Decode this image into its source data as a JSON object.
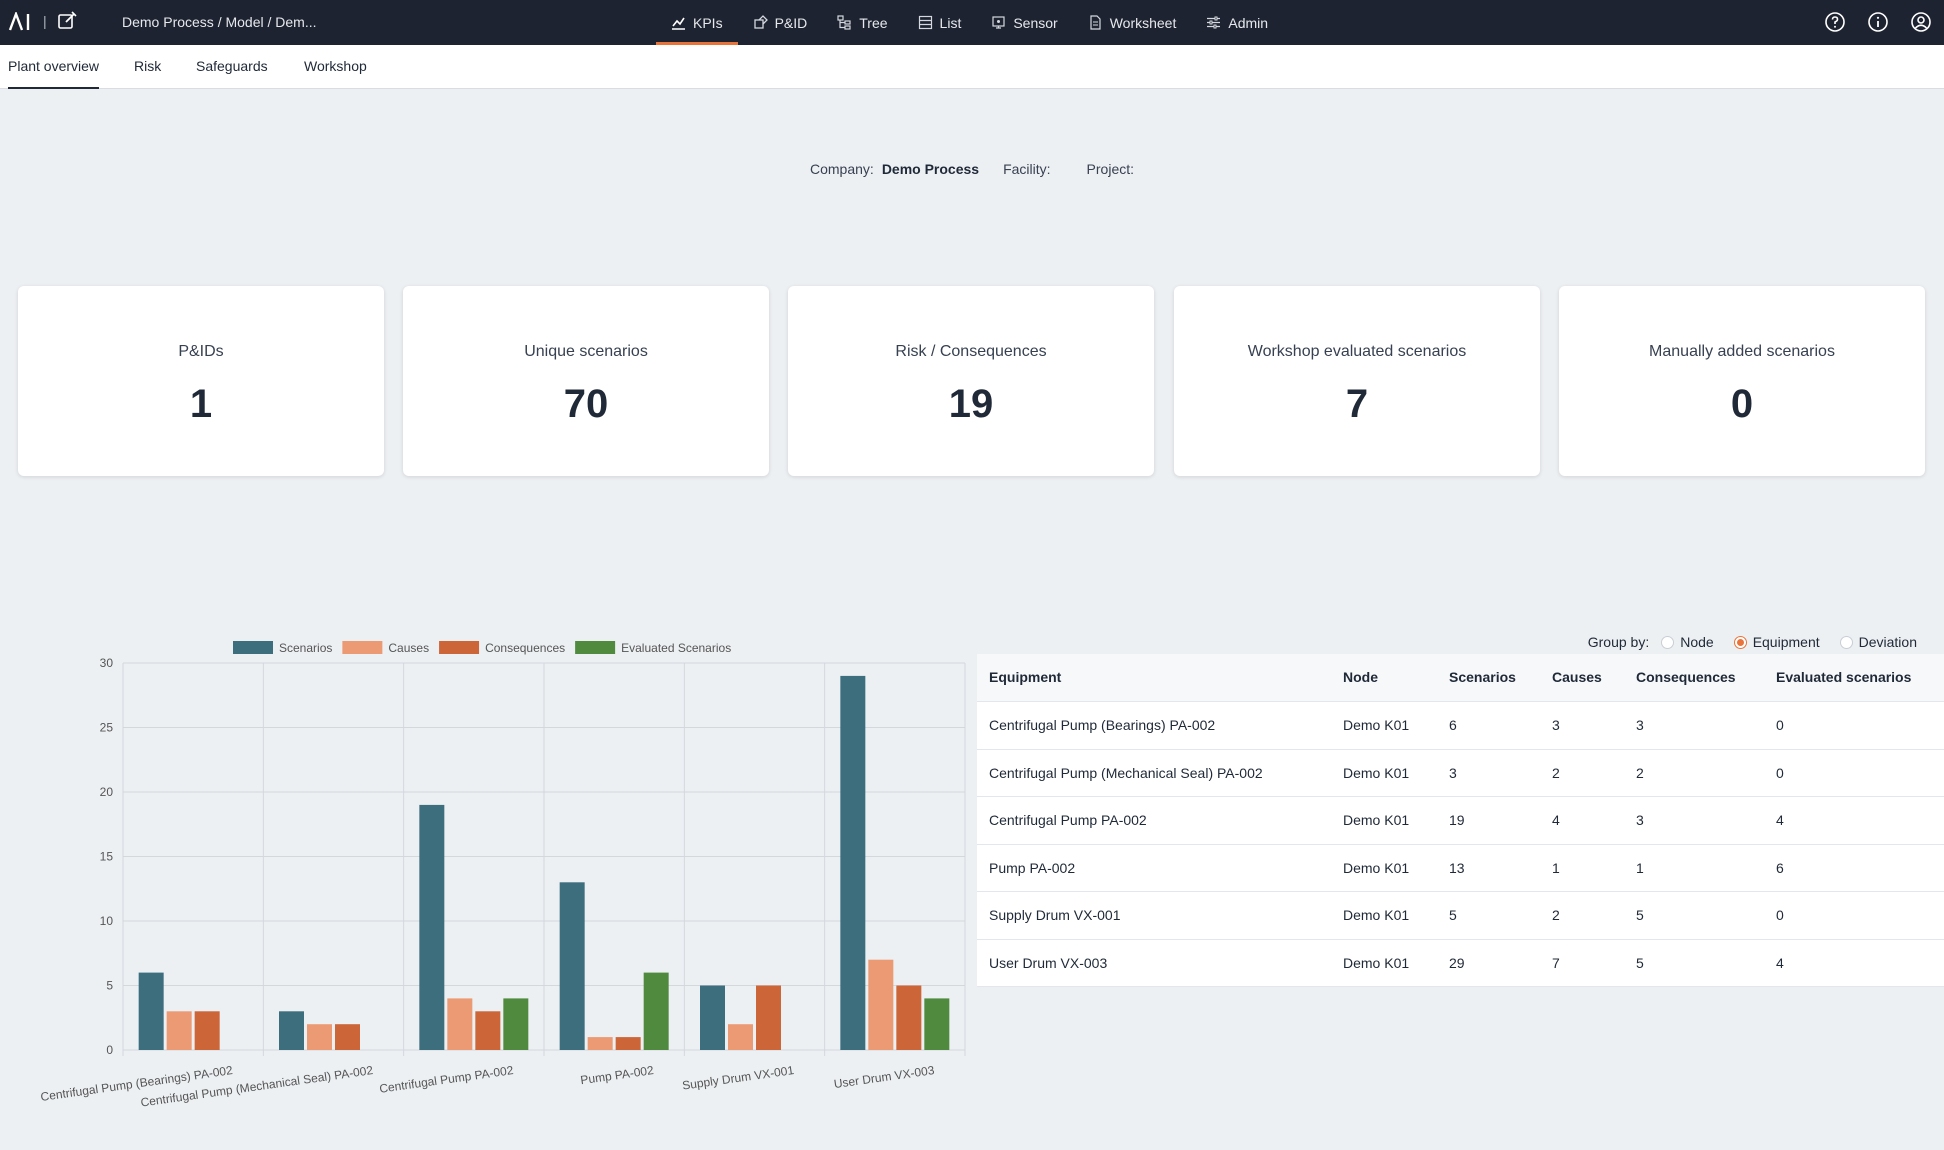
{
  "topbar": {
    "logo_text": "AI",
    "breadcrumb": "Demo Process / Model / Dem...",
    "nav": [
      {
        "label": "KPIs",
        "icon": "chart-line-icon",
        "active": true
      },
      {
        "label": "P&ID",
        "icon": "pid-icon",
        "active": false
      },
      {
        "label": "Tree",
        "icon": "tree-icon",
        "active": false
      },
      {
        "label": "List",
        "icon": "list-icon",
        "active": false
      },
      {
        "label": "Sensor",
        "icon": "sensor-icon",
        "active": false
      },
      {
        "label": "Worksheet",
        "icon": "worksheet-icon",
        "active": false
      },
      {
        "label": "Admin",
        "icon": "admin-sliders-icon",
        "active": false
      }
    ],
    "right_icons": [
      "help-icon",
      "info-icon",
      "account-icon"
    ]
  },
  "subtabs": [
    {
      "label": "Plant overview",
      "active": true
    },
    {
      "label": "Risk",
      "active": false
    },
    {
      "label": "Safeguards",
      "active": false
    },
    {
      "label": "Workshop",
      "active": false
    }
  ],
  "info": {
    "company_label": "Company:",
    "company_value": "Demo Process",
    "facility_label": "Facility:",
    "facility_value": "",
    "project_label": "Project:",
    "project_value": ""
  },
  "kpis": [
    {
      "label": "P&IDs",
      "value": "1"
    },
    {
      "label": "Unique scenarios",
      "value": "70"
    },
    {
      "label": "Risk / Consequences",
      "value": "19"
    },
    {
      "label": "Workshop evaluated scenarios",
      "value": "7"
    },
    {
      "label": "Manually added scenarios",
      "value": "0"
    }
  ],
  "colors": {
    "accent": "#e8743b",
    "scenarios": "#3d6e7e",
    "causes": "#eb9a73",
    "consequences": "#cc6538",
    "evaluated": "#4f8a3e",
    "topbar": "#1d2330"
  },
  "chart_data": {
    "type": "bar",
    "categories": [
      "Centrifugal Pump (Bearings) PA-002",
      "Centrifugal Pump (Mechanical Seal) PA-002",
      "Centrifugal Pump PA-002",
      "Pump PA-002",
      "Supply Drum VX-001",
      "User Drum VX-003"
    ],
    "series": [
      {
        "name": "Scenarios",
        "values": [
          6,
          3,
          19,
          13,
          5,
          29
        ]
      },
      {
        "name": "Causes",
        "values": [
          3,
          2,
          4,
          1,
          2,
          7
        ]
      },
      {
        "name": "Consequences",
        "values": [
          3,
          2,
          3,
          1,
          5,
          5
        ]
      },
      {
        "name": "Evaluated Scenarios",
        "values": [
          0,
          0,
          4,
          6,
          0,
          4
        ]
      }
    ],
    "ylim": [
      0,
      30
    ],
    "yticks": [
      0,
      5,
      10,
      15,
      20,
      25,
      30
    ],
    "grid": true,
    "legend": "top"
  },
  "groupby": {
    "label": "Group by:",
    "options": [
      {
        "label": "Node",
        "checked": false
      },
      {
        "label": "Equipment",
        "checked": true
      },
      {
        "label": "Deviation",
        "checked": false
      }
    ]
  },
  "table": {
    "headers": [
      "Equipment",
      "Node",
      "Scenarios",
      "Causes",
      "Consequences",
      "Evaluated scenarios"
    ],
    "rows": [
      [
        "Centrifugal Pump (Bearings) PA-002",
        "Demo K01",
        "6",
        "3",
        "3",
        "0"
      ],
      [
        "Centrifugal Pump (Mechanical Seal) PA-002",
        "Demo K01",
        "3",
        "2",
        "2",
        "0"
      ],
      [
        "Centrifugal Pump PA-002",
        "Demo K01",
        "19",
        "4",
        "3",
        "4"
      ],
      [
        "Pump PA-002",
        "Demo K01",
        "13",
        "1",
        "1",
        "6"
      ],
      [
        "Supply Drum VX-001",
        "Demo K01",
        "5",
        "2",
        "5",
        "0"
      ],
      [
        "User Drum VX-003",
        "Demo K01",
        "29",
        "7",
        "5",
        "4"
      ]
    ]
  }
}
